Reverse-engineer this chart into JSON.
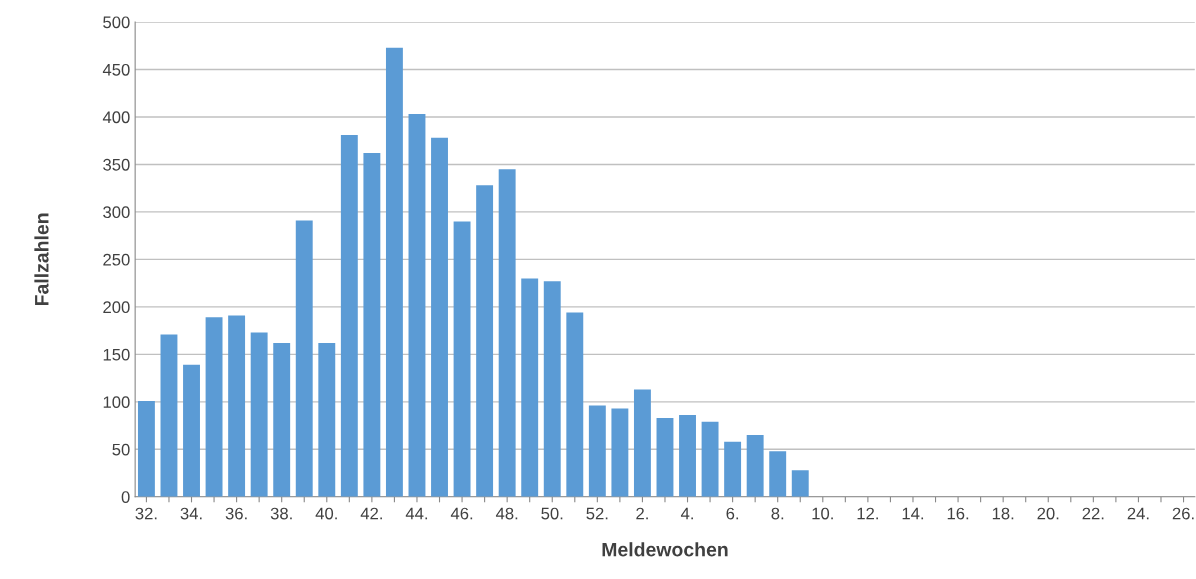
{
  "chart_data": {
    "type": "bar",
    "xlabel": "Meldewochen",
    "ylabel": "Fallzahlen",
    "categories": [
      "32.",
      null,
      "34.",
      null,
      "36.",
      null,
      "38.",
      null,
      "40.",
      null,
      "42.",
      null,
      "44.",
      null,
      "46.",
      null,
      "48.",
      null,
      "50.",
      null,
      "52.",
      null,
      "2.",
      null,
      "4.",
      null,
      "6.",
      null,
      "8.",
      null,
      "10.",
      null,
      "12.",
      null,
      "14.",
      null,
      "16.",
      null,
      "18.",
      null,
      "20.",
      null,
      "22.",
      null,
      "24.",
      null,
      "26."
    ],
    "values": [
      101,
      171,
      139,
      189,
      191,
      173,
      162,
      291,
      162,
      381,
      362,
      473,
      403,
      378,
      290,
      328,
      345,
      230,
      227,
      194,
      96,
      93,
      113,
      83,
      86,
      79,
      58,
      65,
      48,
      28,
      0,
      0,
      0,
      0,
      0,
      0,
      0,
      0,
      0,
      0,
      0,
      0,
      0,
      0,
      0,
      0,
      0
    ],
    "color": "#5b9bd5",
    "ylim": [
      0,
      500
    ],
    "yticks": [
      0,
      50,
      100,
      150,
      200,
      250,
      300,
      350,
      400,
      450,
      500
    ],
    "grid": "y"
  }
}
